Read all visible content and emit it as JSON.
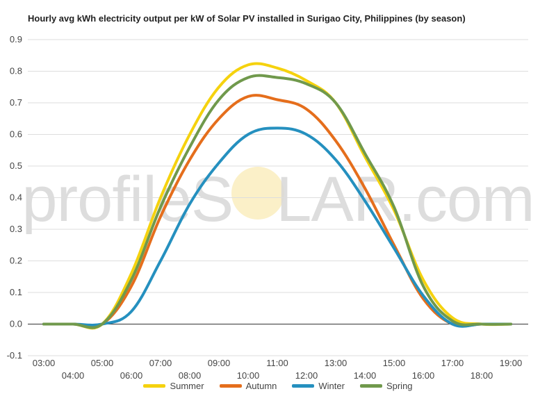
{
  "watermark": {
    "brand_left": "profileS",
    "brand_right": "LAR.com"
  },
  "chart_data": {
    "type": "line",
    "title": "Hourly avg kWh electricity output per kW of Solar PV installed in Surigao City, Philippines (by season)",
    "xlabel": "",
    "ylabel": "",
    "ylim": [
      -0.1,
      0.9
    ],
    "yticks": [
      "-0.1",
      "0.0",
      "0.1",
      "0.2",
      "0.3",
      "0.4",
      "0.5",
      "0.6",
      "0.7",
      "0.8",
      "0.9"
    ],
    "categories": [
      "03:00",
      "04:00",
      "05:00",
      "06:00",
      "07:00",
      "08:00",
      "09:00",
      "10:00",
      "11:00",
      "12:00",
      "13:00",
      "14:00",
      "15:00",
      "16:00",
      "17:00",
      "18:00",
      "19:00"
    ],
    "grid": true,
    "legend_position": "bottom",
    "series": [
      {
        "name": "Summer",
        "color": "#f5d20e",
        "values": [
          0.0,
          0.0,
          0.0,
          0.16,
          0.4,
          0.6,
          0.75,
          0.82,
          0.81,
          0.77,
          0.7,
          0.53,
          0.36,
          0.14,
          0.02,
          0.0,
          0.0
        ]
      },
      {
        "name": "Autumn",
        "color": "#e56e1c",
        "values": [
          0.0,
          0.0,
          0.0,
          0.12,
          0.34,
          0.52,
          0.65,
          0.72,
          0.71,
          0.68,
          0.58,
          0.43,
          0.25,
          0.08,
          0.0,
          0.0,
          0.0
        ]
      },
      {
        "name": "Winter",
        "color": "#2590bf",
        "values": [
          0.0,
          0.0,
          0.0,
          0.04,
          0.2,
          0.38,
          0.51,
          0.6,
          0.62,
          0.6,
          0.52,
          0.39,
          0.24,
          0.09,
          0.0,
          0.0,
          0.0
        ]
      },
      {
        "name": "Spring",
        "color": "#70994c",
        "values": [
          0.0,
          0.0,
          0.0,
          0.14,
          0.37,
          0.56,
          0.71,
          0.78,
          0.78,
          0.76,
          0.7,
          0.54,
          0.37,
          0.12,
          0.01,
          0.0,
          0.0
        ]
      }
    ]
  }
}
